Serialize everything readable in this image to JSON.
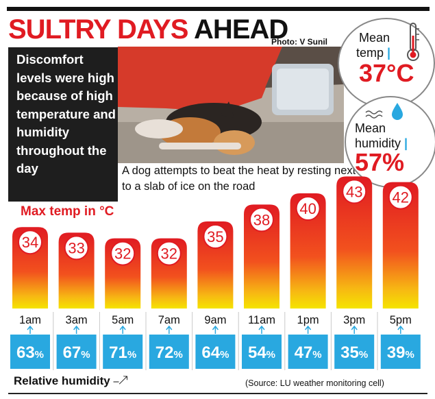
{
  "headline": {
    "part1": "SULTRY DAYS",
    "part2": "AHEAD"
  },
  "photo_credit": "Photo: V Sunil",
  "sidebar_text": "Discomfort levels were high because of high temperature and humidity throughout the day",
  "caption": "A dog attempts to beat the heat by resting next to a slab of ice on the road",
  "mean_temp": {
    "label_line1": "Mean",
    "label_line2": "temp",
    "value": "37°C",
    "icon": "thermometer-icon"
  },
  "mean_humidity": {
    "label_line1": "Mean",
    "label_line2": "humidity",
    "value": "57%",
    "icon": "water-drop-icon"
  },
  "colors": {
    "red": "#e01b22",
    "blue": "#29a8e0",
    "yellow": "#f5e400"
  },
  "chart_data": {
    "type": "bar",
    "title": "Max temp in °C",
    "categories": [
      "1am",
      "3am",
      "5am",
      "7am",
      "9am",
      "11am",
      "1pm",
      "3pm",
      "5pm"
    ],
    "series": [
      {
        "name": "Max temp in °C",
        "values": [
          34,
          33,
          32,
          32,
          35,
          38,
          40,
          43,
          42
        ]
      },
      {
        "name": "Relative humidity",
        "values": [
          63,
          67,
          71,
          72,
          64,
          54,
          47,
          35,
          39
        ]
      }
    ],
    "humidity_labels": [
      "63%",
      "67%",
      "71%",
      "72%",
      "64%",
      "54%",
      "47%",
      "35%",
      "39%"
    ]
  },
  "humidity_label": "Relative humidity",
  "source": "(Source: LU weather monitoring cell)"
}
